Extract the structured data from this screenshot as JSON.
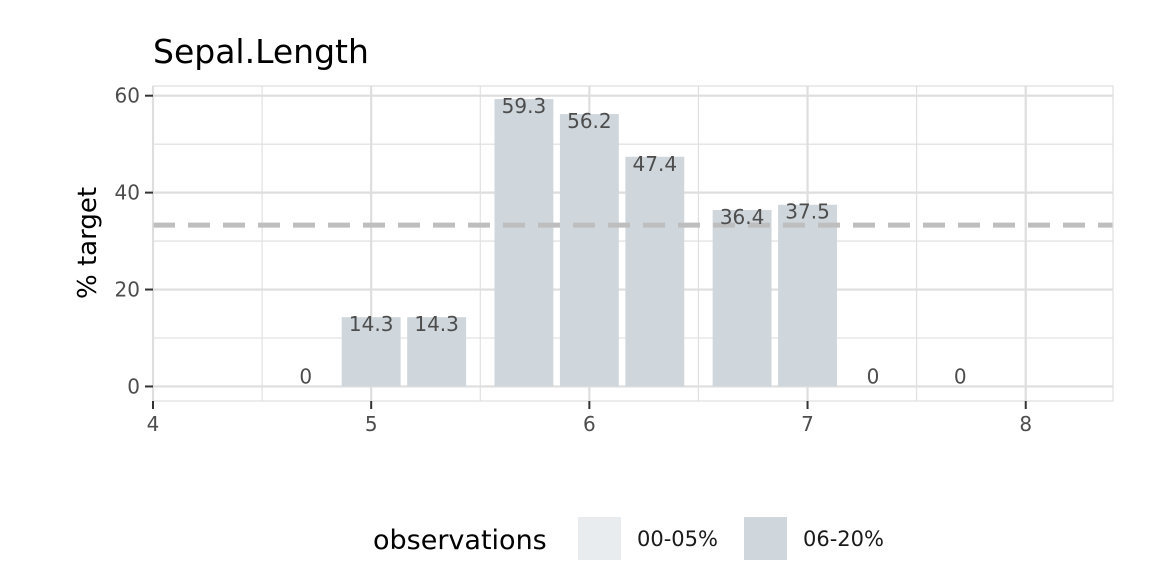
{
  "chart_data": {
    "type": "bar",
    "title": "Sepal.Length",
    "xlabel": "",
    "ylabel": "% target",
    "xlim": [
      4,
      8.4
    ],
    "ylim": [
      -3,
      62
    ],
    "x_ticks": [
      4,
      5,
      6,
      7,
      8
    ],
    "y_ticks": [
      0,
      20,
      40,
      60
    ],
    "grid": true,
    "reference_line": 33.3,
    "bars": [
      {
        "x": 4.7,
        "value": 0,
        "label": "0",
        "group": "06-20%"
      },
      {
        "x": 5.0,
        "value": 14.3,
        "label": "14.3",
        "group": "06-20%"
      },
      {
        "x": 5.3,
        "value": 14.3,
        "label": "14.3",
        "group": "06-20%"
      },
      {
        "x": 5.7,
        "value": 59.3,
        "label": "59.3",
        "group": "06-20%"
      },
      {
        "x": 6.0,
        "value": 56.2,
        "label": "56.2",
        "group": "06-20%"
      },
      {
        "x": 6.3,
        "value": 47.4,
        "label": "47.4",
        "group": "06-20%"
      },
      {
        "x": 6.7,
        "value": 36.4,
        "label": "36.4",
        "group": "06-20%"
      },
      {
        "x": 7.0,
        "value": 37.5,
        "label": "37.5",
        "group": "06-20%"
      },
      {
        "x": 7.3,
        "value": 0,
        "label": "0",
        "group": "06-20%"
      },
      {
        "x": 7.7,
        "value": 0,
        "label": "0",
        "group": "06-20%"
      }
    ],
    "legend": {
      "position": "bottom",
      "title": "observations",
      "items": [
        {
          "label": "00-05%",
          "color": "#e9ecef"
        },
        {
          "label": "06-20%",
          "color": "#cfd7dc"
        }
      ]
    },
    "colors": {
      "bar": "#cfd7dc",
      "reference_line": "#bebebe",
      "grid": "#dedede"
    }
  }
}
